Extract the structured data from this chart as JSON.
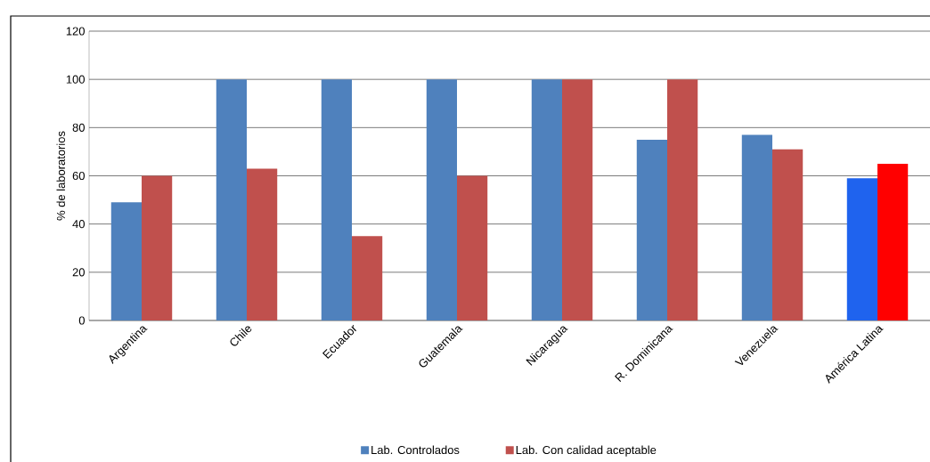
{
  "chart_data": {
    "type": "bar",
    "ylabel": "% de laboratorios",
    "categories": [
      "Argentina",
      "Chile",
      "Ecuador",
      "Guatemala",
      "Nicaragua",
      "R. Dominicana",
      "Venezuela",
      "América Latina"
    ],
    "series": [
      {
        "name": "Lab. Controlados",
        "color": "#4f81bd",
        "colors": [
          "#4f81bd",
          "#4f81bd",
          "#4f81bd",
          "#4f81bd",
          "#4f81bd",
          "#4f81bd",
          "#4f81bd",
          "#1f63ee"
        ],
        "values": [
          49,
          100,
          100,
          100,
          100,
          75,
          77,
          59
        ]
      },
      {
        "name": "Lab. Con calidad aceptable",
        "color": "#c0504d",
        "colors": [
          "#c0504d",
          "#c0504d",
          "#c0504d",
          "#c0504d",
          "#c0504d",
          "#c0504d",
          "#c0504d",
          "#ff0000"
        ],
        "values": [
          60,
          63,
          35,
          60,
          100,
          100,
          71,
          65
        ]
      }
    ],
    "ylim": [
      0,
      120
    ],
    "yticks": [
      0,
      20,
      40,
      60,
      80,
      100,
      120
    ],
    "grid": "y",
    "legend": "bottom"
  }
}
